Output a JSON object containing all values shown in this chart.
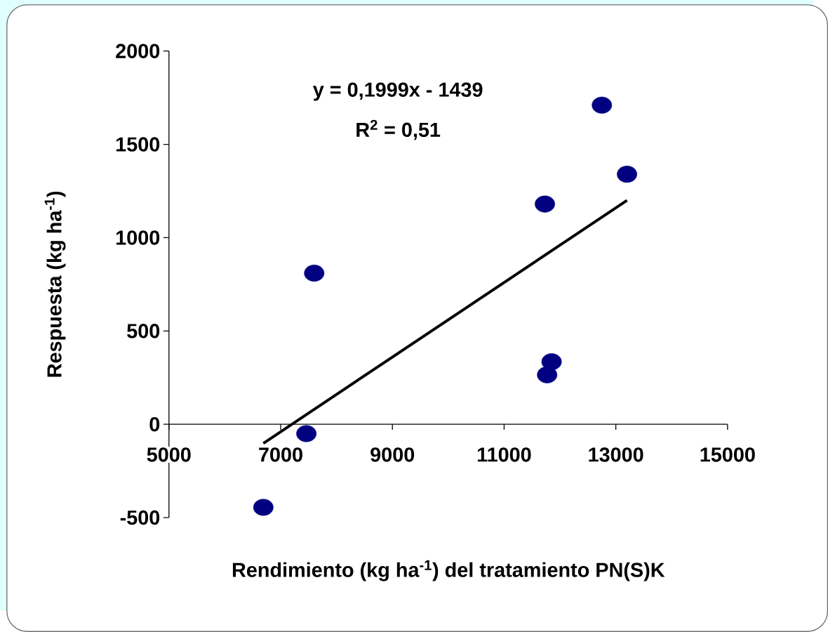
{
  "chart_data": {
    "type": "scatter",
    "xlabel": "Rendimiento (kg ha$^{-1}$) del tratamiento PN(S)K",
    "ylabel": "Respuesta (kg ha$^{-1}$)",
    "annotations": [
      "y = 0,1999x - 1439",
      "R$^{2}$ = 0,51"
    ],
    "xlim": [
      5000,
      15000
    ],
    "ylim": [
      -500,
      2000
    ],
    "xticks": [
      5000,
      7000,
      9000,
      11000,
      13000,
      15000
    ],
    "yticks": [
      -500,
      0,
      500,
      1000,
      1500,
      2000
    ],
    "series": [
      {
        "color": "#000080",
        "marker": "circle",
        "x": [
          6690,
          7460,
          7600,
          11730,
          12750,
          13200,
          11850,
          11770
        ],
        "values": [
          -445,
          -50,
          810,
          1180,
          1710,
          1340,
          335,
          265
        ]
      },
      {
        "type": "line",
        "color": "#000000",
        "marker": "none",
        "x": [
          6690,
          13200
        ],
        "values": [
          -102,
          1200
        ]
      }
    ]
  }
}
